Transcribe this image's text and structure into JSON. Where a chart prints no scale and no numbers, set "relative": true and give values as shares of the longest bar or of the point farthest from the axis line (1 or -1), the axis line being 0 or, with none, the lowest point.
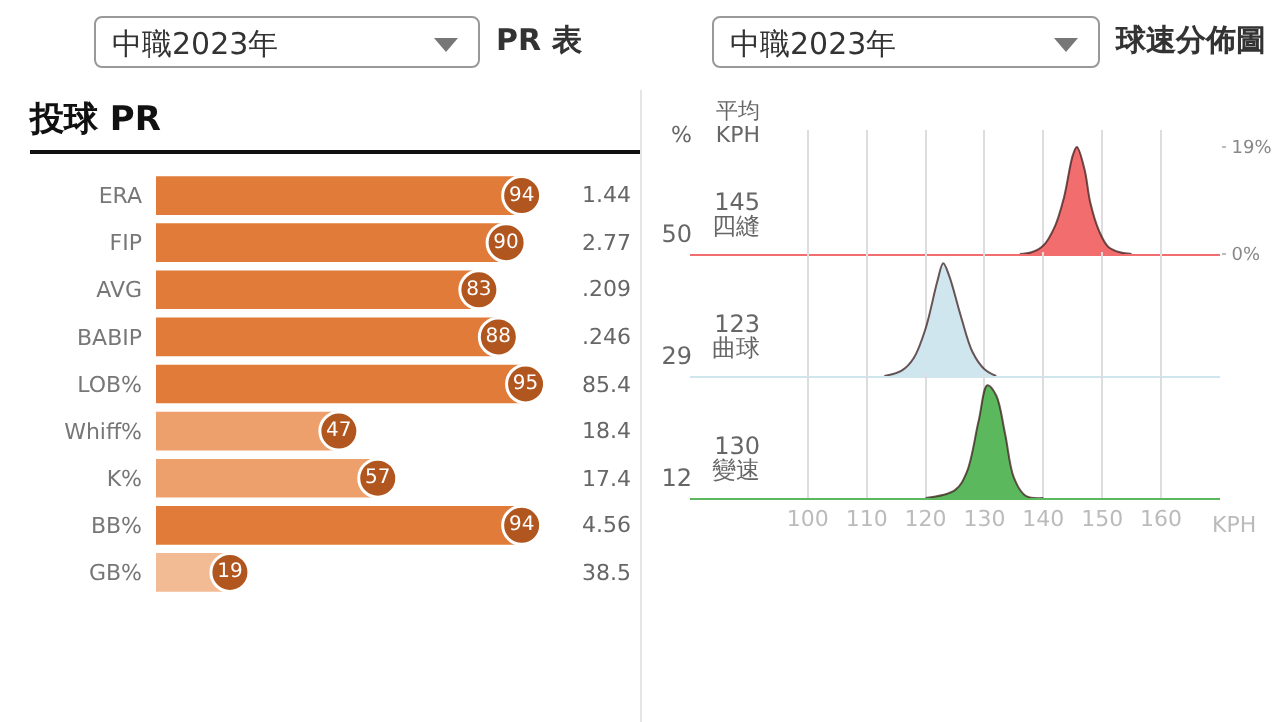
{
  "chart_data": [
    {
      "type": "bar",
      "orientation": "horizontal",
      "title": "投球 PR",
      "categories": [
        "ERA",
        "FIP",
        "AVG",
        "BABIP",
        "LOB%",
        "Whiff%",
        "K%",
        "BB%",
        "GB%"
      ],
      "values": [
        94,
        90,
        83,
        88,
        95,
        47,
        57,
        94,
        19
      ],
      "colors": [
        "#e07b39",
        "#e07b39",
        "#e07b39",
        "#e07b39",
        "#e07b39",
        "#eda06c",
        "#eda06c",
        "#e07b39",
        "#f2bb94"
      ],
      "tick_labels": "y",
      "data_labels": true,
      "grid": false,
      "legend": false,
      "annotations": [
        "中職2023年",
        "PR 表",
        "1.44",
        "2.77",
        ".209",
        ".246",
        "85.4",
        "18.4",
        "17.4",
        "4.56",
        "38.5"
      ]
    },
    {
      "type": "area",
      "title": "球速分佈圖",
      "xlim": [
        80,
        170
      ],
      "ylim": [
        0,
        22
      ],
      "yticks": [
        {
          "value": 19,
          "label": "19%"
        },
        {
          "value": 0,
          "label": "0%"
        }
      ],
      "grid": "x",
      "tick_labels": "y",
      "legend": false,
      "annotations": [
        "中職2023年",
        "%",
        "平均\nKPH",
        "50",
        "145"
      ],
      "series": [
        {
          "name": "四縫",
          "color": "#f26d6d",
          "x": [
            136,
            138,
            140,
            142,
            143.5,
            145,
            145.7,
            147,
            148,
            149.5,
            151,
            153,
            155
          ],
          "values": [
            0,
            0.3,
            1.5,
            5,
            10,
            17.5,
            19,
            15,
            9,
            4,
            1.3,
            0.3,
            0
          ]
        }
      ]
    },
    {
      "type": "area",
      "relative": true,
      "xlim": [
        80,
        170
      ],
      "grid": "x",
      "tick_labels": false,
      "legend": false,
      "annotations": [
        "29",
        "123"
      ],
      "series": [
        {
          "name": "曲球",
          "color": "#cfe6ef",
          "x": [
            113,
            116,
            118,
            120,
            122,
            123,
            124,
            126,
            128,
            130,
            132
          ],
          "values": [
            0,
            0.05,
            0.16,
            0.42,
            0.84,
            1,
            0.89,
            0.53,
            0.21,
            0.06,
            0
          ]
        }
      ]
    },
    {
      "type": "area",
      "relative": true,
      "xlim": [
        80,
        170
      ],
      "xticks": [
        100,
        110,
        120,
        130,
        140,
        150,
        160
      ],
      "xlabel": "KPH",
      "grid": "x",
      "tick_labels": "x",
      "legend": false,
      "annotations": [
        "12",
        "130"
      ],
      "series": [
        {
          "name": "變速",
          "color": "#5cb85c",
          "x": [
            120,
            125,
            127,
            129,
            130.5,
            132,
            133.5,
            135,
            137,
            140
          ],
          "values": [
            0,
            0.07,
            0.23,
            0.68,
            1,
            0.91,
            0.57,
            0.18,
            0.02,
            0
          ]
        }
      ]
    }
  ]
}
